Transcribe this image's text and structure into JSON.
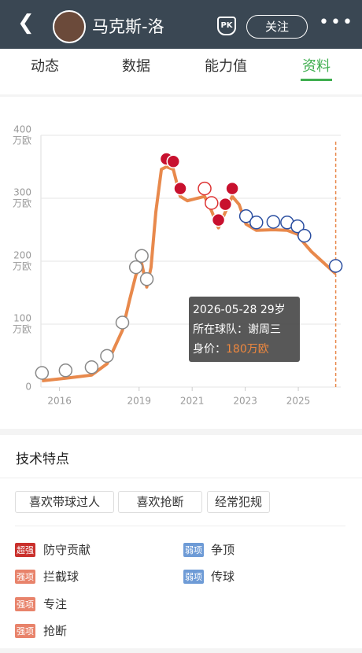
{
  "header": {
    "name": "马克斯-洛",
    "pk": "PK",
    "follow": "关注"
  },
  "tabs": [
    "动态",
    "数据",
    "能力值",
    "资料"
  ],
  "active_tab": 3,
  "chart_data": {
    "type": "line",
    "x": [
      2015.34,
      2016.23,
      2017.21,
      2017.79,
      2018.37,
      2018.65,
      2018.88,
      2019.1,
      2019.29,
      2019.45,
      2019.63,
      2019.84,
      2020.03,
      2020.29,
      2020.55,
      2020.82,
      2021.47,
      2021.73,
      2021.99,
      2022.25,
      2022.51,
      2022.77,
      2023.03,
      2023.42,
      2024.06,
      2024.58,
      2024.97,
      2025.23,
      2025.5,
      2026.41
    ],
    "values": [
      10,
      14,
      19,
      37,
      90,
      140,
      178,
      196,
      159,
      190,
      278,
      346,
      350,
      346,
      303,
      296,
      303,
      280,
      253,
      278,
      303,
      290,
      259,
      249,
      250,
      249,
      243,
      228,
      215,
      180
    ],
    "color": "#e8894c",
    "xlim": [
      2015.3,
      2026.6
    ],
    "ylim": [
      0,
      400
    ],
    "xticks": [
      2016,
      2019,
      2021,
      2023,
      2025
    ],
    "yticks": [
      0,
      100,
      200,
      300,
      400
    ],
    "y_unit": "万欧",
    "grid": true,
    "marker_x": 2026.41,
    "tooltip": {
      "date": "2026-05-28",
      "age": "29岁",
      "team_label": "所在球队：",
      "team": "谢周三",
      "value_label": "身价：",
      "value": "180万欧"
    }
  },
  "features": {
    "title": "技术特点",
    "tags": [
      "喜欢带球过人",
      "喜欢抢断",
      "经常犯规"
    ],
    "strengths": [
      {
        "level": "超强",
        "text": "防守贡献"
      },
      {
        "level": "强项",
        "text": "拦截球"
      },
      {
        "level": "强项",
        "text": "专注"
      },
      {
        "level": "强项",
        "text": "抢断"
      }
    ],
    "weaknesses": [
      {
        "level": "弱项",
        "text": "争顶"
      },
      {
        "level": "弱项",
        "text": "传球"
      }
    ]
  }
}
